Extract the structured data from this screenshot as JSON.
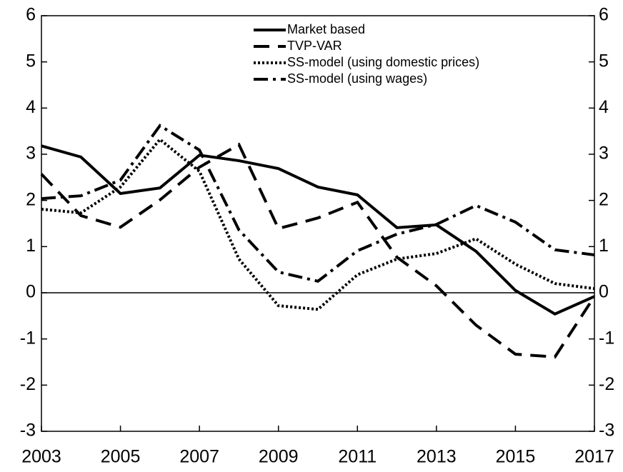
{
  "chart_data": {
    "type": "line",
    "x": [
      2003,
      2004,
      2005,
      2006,
      2007,
      2008,
      2009,
      2010,
      2011,
      2012,
      2013,
      2014,
      2015,
      2016,
      2017
    ],
    "series": [
      {
        "name": "Market based",
        "color": "#000000",
        "style": "solid",
        "values": [
          3.18,
          2.94,
          2.15,
          2.27,
          2.98,
          2.86,
          2.69,
          2.29,
          2.12,
          1.41,
          1.47,
          0.9,
          0.05,
          -0.46,
          -0.08
        ]
      },
      {
        "name": "TVP-VAR",
        "color": "#000000",
        "style": "dashed",
        "values": [
          2.57,
          1.67,
          1.42,
          2.01,
          2.72,
          3.21,
          1.39,
          1.62,
          1.96,
          0.77,
          0.15,
          -0.7,
          -1.33,
          -1.39,
          -0.08
        ]
      },
      {
        "name": "SS-model (using domestic prices)",
        "color": "#000000",
        "style": "dotted",
        "values": [
          1.81,
          1.73,
          2.29,
          3.32,
          2.63,
          0.73,
          -0.28,
          -0.36,
          0.39,
          0.73,
          0.85,
          1.17,
          0.62,
          0.2,
          0.09
        ]
      },
      {
        "name": "SS-model (using wages)",
        "color": "#000000",
        "style": "dashdot",
        "values": [
          2.04,
          2.1,
          2.44,
          3.62,
          3.09,
          1.36,
          0.45,
          0.25,
          0.91,
          1.27,
          1.48,
          1.89,
          1.53,
          0.93,
          0.82
        ]
      }
    ],
    "xlim": [
      2003,
      2017
    ],
    "xticks": [
      2003,
      2005,
      2007,
      2009,
      2011,
      2013,
      2015,
      2017
    ],
    "ylim": [
      -3,
      6
    ],
    "yticks": [
      -3,
      -2,
      -1,
      0,
      1,
      2,
      3,
      4,
      5,
      6
    ],
    "y2lim": [
      -3,
      6
    ],
    "y2ticks": [
      -3,
      -2,
      -1,
      0,
      1,
      2,
      3,
      4,
      5,
      6
    ],
    "zero_line": true,
    "legend": "top"
  }
}
